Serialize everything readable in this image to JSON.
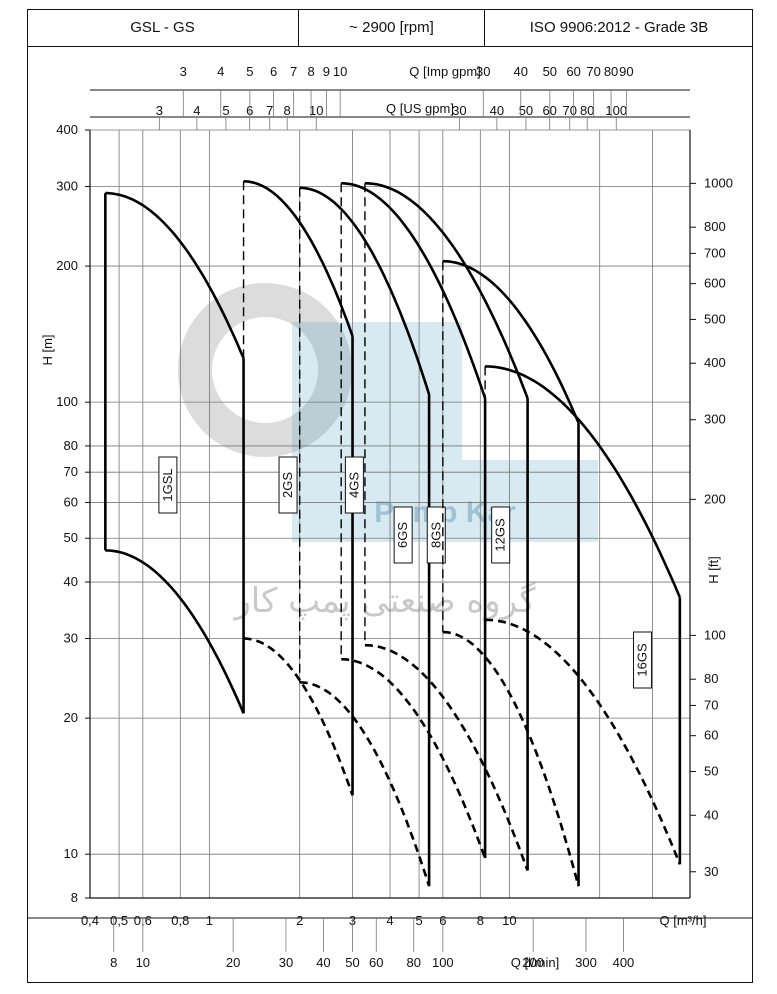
{
  "header": {
    "model": "GSL - GS",
    "speed": "~ 2900 [rpm]",
    "standard": "ISO 9906:2012 - Grade 3B"
  },
  "watermark": {
    "brand": "Pump Kar",
    "persian": "گروه صنعتی پمپ کار",
    "color": "#4a9fc0"
  },
  "chart_data": {
    "type": "line",
    "scale": "log-log",
    "grid": true,
    "x_axes": {
      "main": {
        "label": "Q [m³/h]",
        "range": [
          0.4,
          40
        ],
        "ticks": [
          "0,4",
          "0,5",
          "0,6",
          "0,8",
          "1",
          "2",
          "3",
          "4",
          "5",
          "6",
          "8",
          "10"
        ]
      },
      "lmin": {
        "label": "Q [l/min]",
        "ticks": [
          "8",
          "10",
          "20",
          "30",
          "40",
          "50",
          "60",
          "80",
          "100",
          "200",
          "300",
          "400"
        ]
      },
      "us_gpm": {
        "label": "Q [US gpm]",
        "ticks": [
          "3",
          "4",
          "5",
          "6",
          "7",
          "8",
          "10",
          "30",
          "40",
          "50",
          "60",
          "70",
          "80",
          "100"
        ]
      },
      "imp_gpm": {
        "label": "Q [Imp gpm]",
        "ticks": [
          "3",
          "4",
          "5",
          "6",
          "7",
          "8",
          "9",
          "10",
          "30",
          "40",
          "50",
          "60",
          "70",
          "80",
          "90"
        ]
      }
    },
    "y_axes": {
      "left": {
        "label": "H [m]",
        "range": [
          8,
          400
        ],
        "ticks": [
          "8",
          "10",
          "20",
          "30",
          "40",
          "50",
          "60",
          "70",
          "80",
          "100",
          "200",
          "300",
          "400"
        ]
      },
      "right": {
        "label": "H [ft]",
        "ticks": [
          "30",
          "40",
          "50",
          "60",
          "70",
          "80",
          "100",
          "200",
          "300",
          "400",
          "500",
          "600",
          "700",
          "800",
          "1000"
        ]
      }
    },
    "series": [
      {
        "name": "1GSL",
        "q_min": 0.45,
        "q_max": 1.3,
        "h_max_top": 290,
        "h_max_right": 125,
        "h_min_left": 47,
        "h_min_right": 20.5
      },
      {
        "name": "2GS",
        "q_min": 1.3,
        "q_max": 3.0,
        "h_max_top": 308,
        "h_max_right": 140,
        "h_min_left": 30,
        "h_min_right": 13.5
      },
      {
        "name": "4GS",
        "q_min": 2.0,
        "q_max": 5.4,
        "h_max_top": 298,
        "h_max_right": 104,
        "h_min_left": 24,
        "h_min_right": 8.5
      },
      {
        "name": "6GS",
        "q_min": 2.75,
        "q_max": 8.3,
        "h_max_top": 305,
        "h_max_right": 102,
        "h_min_left": 27,
        "h_min_right": 9.8
      },
      {
        "name": "8GS",
        "q_min": 3.3,
        "q_max": 11.5,
        "h_max_top": 305,
        "h_max_right": 102,
        "h_min_left": 29,
        "h_min_right": 9.2
      },
      {
        "name": "12GS",
        "q_min": 6.0,
        "q_max": 17.0,
        "h_max_top": 205,
        "h_max_right": 90,
        "h_min_left": 31,
        "h_min_right": 8.5
      },
      {
        "name": "16GS",
        "q_min": 8.3,
        "q_max": 37.0,
        "h_max_top": 120,
        "h_max_right": 37,
        "h_min_left": 33,
        "h_min_right": 9.5
      }
    ]
  }
}
